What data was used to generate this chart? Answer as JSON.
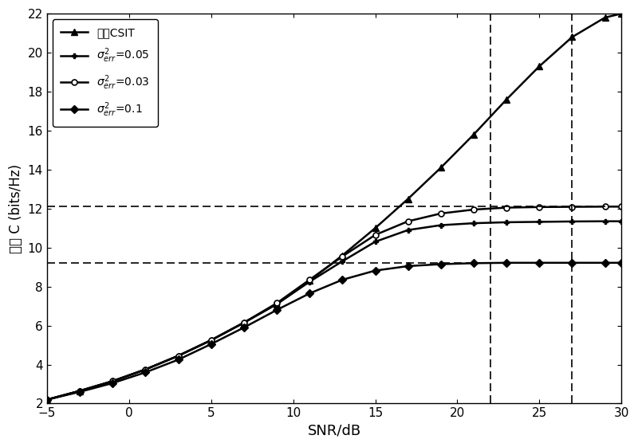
{
  "xlabel": "SNR/dB",
  "ylabel": "容量 C (bits/Hz)",
  "xlim": [
    -5,
    30
  ],
  "ylim": [
    2,
    22
  ],
  "xticks": [
    -5,
    0,
    5,
    10,
    15,
    20,
    25,
    30
  ],
  "yticks": [
    2,
    4,
    6,
    8,
    10,
    12,
    14,
    16,
    18,
    20,
    22
  ],
  "snr": [
    -5,
    -3,
    -1,
    1,
    3,
    5,
    7,
    9,
    11,
    13,
    15,
    17,
    19,
    21,
    23,
    25,
    27,
    29,
    30
  ],
  "perfect_csit": [
    2.2,
    2.65,
    3.15,
    3.75,
    4.45,
    5.25,
    6.15,
    7.1,
    8.3,
    9.6,
    11.0,
    12.5,
    14.1,
    15.8,
    17.6,
    19.3,
    20.8,
    21.8,
    22.0
  ],
  "sigma_005": [
    2.2,
    2.65,
    3.15,
    3.75,
    4.45,
    5.25,
    6.15,
    7.1,
    8.25,
    9.3,
    10.3,
    10.9,
    11.15,
    11.25,
    11.3,
    11.32,
    11.34,
    11.35,
    11.35
  ],
  "sigma_003": [
    2.2,
    2.65,
    3.15,
    3.75,
    4.45,
    5.25,
    6.15,
    7.15,
    8.35,
    9.55,
    10.65,
    11.35,
    11.75,
    11.95,
    12.05,
    12.08,
    12.09,
    12.1,
    12.1
  ],
  "sigma_01": [
    2.2,
    2.6,
    3.05,
    3.6,
    4.25,
    5.05,
    5.9,
    6.8,
    7.65,
    8.35,
    8.82,
    9.05,
    9.15,
    9.2,
    9.22,
    9.22,
    9.22,
    9.22,
    9.22
  ],
  "hline1": 12.1,
  "hline2": 9.22,
  "vline1": 22,
  "vline2": 27,
  "background_color": "#ffffff",
  "line_color": "#000000",
  "label_perfect": "完美CSIT",
  "label_005": "$\\sigma_{err}^{2}$=0.05",
  "label_003": "$\\sigma_{err}^{2}$=0.03",
  "label_01": "$\\sigma_{err}^{2}$=0.1"
}
